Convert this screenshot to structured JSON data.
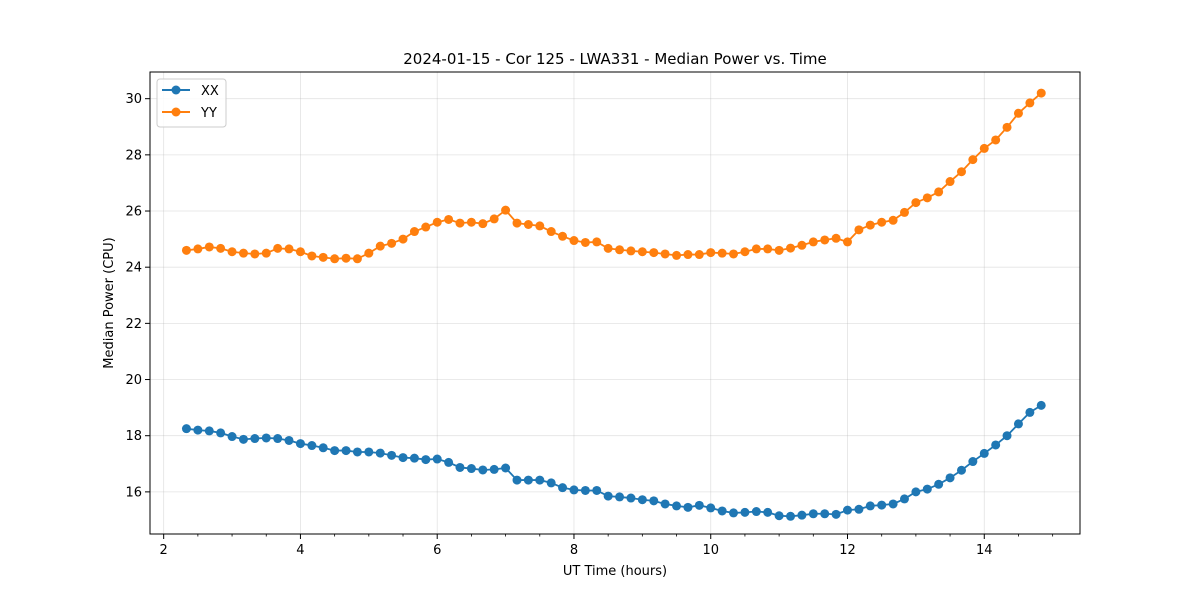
{
  "chart_data": {
    "type": "line",
    "title": "2024-01-15 - Cor 125 - LWA331 - Median Power vs. Time",
    "xlabel": "UT Time (hours)",
    "ylabel": "Median Power (CPU)",
    "xlim": [
      1.8,
      15.4
    ],
    "ylim": [
      14.5,
      30.95
    ],
    "xticks": [
      2,
      4,
      6,
      8,
      10,
      12,
      14
    ],
    "xtick_labels": [
      "2",
      "4",
      "6",
      "8",
      "10",
      "12",
      "14"
    ],
    "yticks": [
      16,
      18,
      20,
      22,
      24,
      26,
      28,
      30
    ],
    "ytick_labels": [
      "16",
      "18",
      "20",
      "22",
      "24",
      "26",
      "28",
      "30"
    ],
    "grid": true,
    "legend_position": "top-left",
    "x": [
      2.333,
      2.5,
      2.667,
      2.833,
      3.0,
      3.167,
      3.333,
      3.5,
      3.667,
      3.833,
      4.0,
      4.167,
      4.333,
      4.5,
      4.667,
      4.833,
      5.0,
      5.167,
      5.333,
      5.5,
      5.667,
      5.833,
      6.0,
      6.167,
      6.333,
      6.5,
      6.667,
      6.833,
      7.0,
      7.167,
      7.333,
      7.5,
      7.667,
      7.833,
      8.0,
      8.167,
      8.333,
      8.5,
      8.667,
      8.833,
      9.0,
      9.167,
      9.333,
      9.5,
      9.667,
      9.833,
      10.0,
      10.167,
      10.333,
      10.5,
      10.667,
      10.833,
      11.0,
      11.167,
      11.333,
      11.5,
      11.667,
      11.833,
      12.0,
      12.167,
      12.333,
      12.5,
      12.667,
      12.833,
      13.0,
      13.167,
      13.333,
      13.5,
      13.667,
      13.833,
      14.0,
      14.167,
      14.333,
      14.5,
      14.667,
      14.833
    ],
    "series": [
      {
        "name": "XX",
        "color": "#1f77b4",
        "values": [
          18.25,
          18.2,
          18.17,
          18.1,
          17.97,
          17.87,
          17.9,
          17.92,
          17.9,
          17.83,
          17.72,
          17.65,
          17.57,
          17.47,
          17.47,
          17.42,
          17.42,
          17.38,
          17.3,
          17.22,
          17.2,
          17.15,
          17.17,
          17.05,
          16.87,
          16.83,
          16.78,
          16.8,
          16.85,
          16.42,
          16.42,
          16.42,
          16.32,
          16.15,
          16.07,
          16.05,
          16.05,
          15.85,
          15.82,
          15.78,
          15.72,
          15.68,
          15.57,
          15.5,
          15.45,
          15.52,
          15.43,
          15.32,
          15.25,
          15.27,
          15.3,
          15.27,
          15.15,
          15.13,
          15.17,
          15.22,
          15.22,
          15.2,
          15.35,
          15.38,
          15.5,
          15.53,
          15.57,
          15.75,
          16.0,
          16.1,
          16.27,
          16.5,
          16.77,
          17.08,
          17.37,
          17.67,
          18.0,
          18.42,
          18.83,
          19.08
        ]
      },
      {
        "name": "YY",
        "color": "#ff7f0e",
        "values": [
          24.6,
          24.65,
          24.72,
          24.67,
          24.55,
          24.5,
          24.47,
          24.5,
          24.67,
          24.65,
          24.55,
          24.4,
          24.35,
          24.3,
          24.32,
          24.3,
          24.5,
          24.75,
          24.85,
          25.0,
          25.27,
          25.43,
          25.6,
          25.7,
          25.57,
          25.6,
          25.55,
          25.72,
          26.03,
          25.57,
          25.52,
          25.47,
          25.27,
          25.1,
          24.95,
          24.88,
          24.9,
          24.67,
          24.62,
          24.58,
          24.55,
          24.52,
          24.47,
          24.42,
          24.45,
          24.45,
          24.52,
          24.5,
          24.47,
          24.55,
          24.65,
          24.65,
          24.6,
          24.68,
          24.78,
          24.9,
          24.97,
          25.03,
          24.9,
          25.33,
          25.5,
          25.6,
          25.67,
          25.95,
          26.3,
          26.47,
          26.68,
          27.05,
          27.4,
          27.83,
          28.23,
          28.53,
          28.98,
          29.48,
          29.85,
          30.2
        ]
      }
    ]
  }
}
